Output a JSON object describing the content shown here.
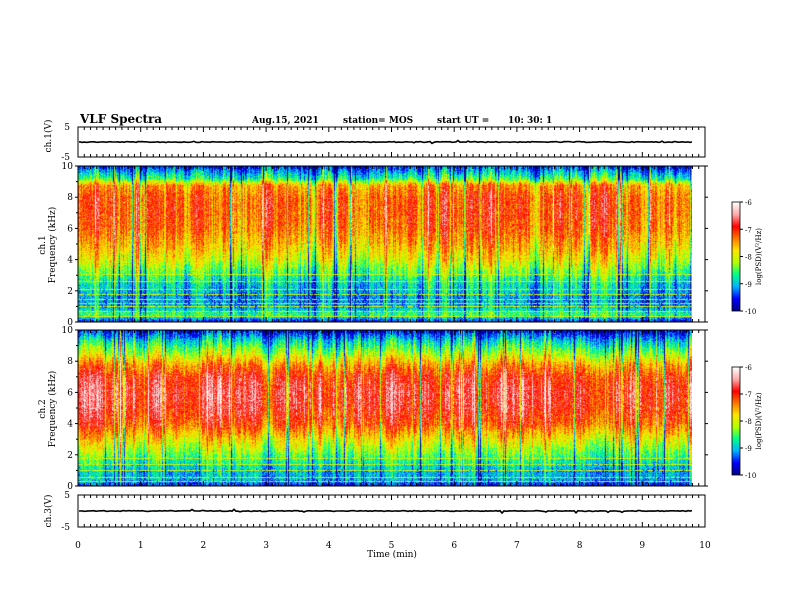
{
  "header": {
    "title": "VLF Spectra",
    "date": "Aug.15, 2021",
    "station": "station= MOS",
    "start_label": "start  UT =",
    "start_time": "10: 30: 1"
  },
  "chart_data": [
    {
      "type": "line",
      "name": "ch1-waveform",
      "ylabel": "ch.1(V)",
      "ylim": [
        -5,
        5
      ],
      "yticks": [
        "5",
        "-5"
      ],
      "xlim": [
        0,
        10
      ],
      "trace_level": 0
    },
    {
      "type": "heatmap",
      "name": "ch1-spectrogram",
      "ylabel": "ch.1\nFrequency (kHz)",
      "ylim": [
        0,
        10
      ],
      "yticks": [
        "0",
        "2",
        "4",
        "6",
        "8",
        "10"
      ],
      "xlim": [
        0,
        10
      ],
      "data_xmax": 9.8,
      "colorbar": {
        "label": "log(PSD)(V²/Hz)",
        "min": -10,
        "max": -6,
        "ticks": [
          "-6",
          "-7",
          "-8",
          "-9",
          "-10"
        ]
      },
      "profile": [
        {
          "f": 0.0,
          "v": -9.6
        },
        {
          "f": 0.5,
          "v": -8.6
        },
        {
          "f": 1.0,
          "v": -9.1
        },
        {
          "f": 1.5,
          "v": -9.2
        },
        {
          "f": 2.0,
          "v": -9.0
        },
        {
          "f": 2.5,
          "v": -8.9
        },
        {
          "f": 3.0,
          "v": -8.6
        },
        {
          "f": 3.5,
          "v": -8.3
        },
        {
          "f": 4.0,
          "v": -8.0
        },
        {
          "f": 5.0,
          "v": -7.6
        },
        {
          "f": 6.0,
          "v": -7.3
        },
        {
          "f": 7.0,
          "v": -7.2
        },
        {
          "f": 8.0,
          "v": -7.2
        },
        {
          "f": 8.8,
          "v": -7.5
        },
        {
          "f": 9.2,
          "v": -8.6
        },
        {
          "f": 10.0,
          "v": -9.5
        }
      ],
      "lines_khz": [
        0.4,
        0.7,
        1.0,
        1.2,
        1.5,
        1.8,
        2.1,
        2.6,
        3.1
      ]
    },
    {
      "type": "heatmap",
      "name": "ch2-spectrogram",
      "ylabel": "ch.2\nFrequency (kHz)",
      "ylim": [
        0,
        10
      ],
      "yticks": [
        "0",
        "2",
        "4",
        "6",
        "8",
        "10"
      ],
      "xlim": [
        0,
        10
      ],
      "data_xmax": 9.8,
      "colorbar": {
        "label": "log(PSD)(V²/Hz)",
        "min": -10,
        "max": -6,
        "ticks": [
          "-6",
          "-7",
          "-8",
          "-9",
          "-10"
        ]
      },
      "profile": [
        {
          "f": 0.0,
          "v": -9.5
        },
        {
          "f": 0.5,
          "v": -9.0
        },
        {
          "f": 1.0,
          "v": -9.0
        },
        {
          "f": 1.5,
          "v": -8.7
        },
        {
          "f": 2.0,
          "v": -8.4
        },
        {
          "f": 3.0,
          "v": -7.8
        },
        {
          "f": 4.0,
          "v": -7.1
        },
        {
          "f": 5.0,
          "v": -6.8
        },
        {
          "f": 6.0,
          "v": -6.7
        },
        {
          "f": 7.0,
          "v": -6.9
        },
        {
          "f": 7.8,
          "v": -7.4
        },
        {
          "f": 8.5,
          "v": -8.1
        },
        {
          "f": 9.3,
          "v": -8.8
        },
        {
          "f": 10.0,
          "v": -9.6
        }
      ],
      "lines_khz": [
        0.3,
        0.6,
        1.0,
        1.4,
        1.8
      ]
    },
    {
      "type": "line",
      "name": "ch3-waveform",
      "ylabel": "ch.3(V)",
      "ylim": [
        -5,
        5
      ],
      "yticks": [
        "5",
        "-5"
      ],
      "xlim": [
        0,
        10
      ],
      "trace_level": 0
    }
  ],
  "x_axis": {
    "label": "Time  (min)",
    "ticks": [
      "0",
      "1",
      "2",
      "3",
      "4",
      "5",
      "6",
      "7",
      "8",
      "9",
      "10"
    ]
  },
  "colors": {
    "scale": [
      "#00008b",
      "#0000ff",
      "#00b4ff",
      "#00ff88",
      "#b4ff00",
      "#ffe600",
      "#ff7800",
      "#ff0000",
      "#ffaaaa",
      "#ffffff"
    ]
  }
}
